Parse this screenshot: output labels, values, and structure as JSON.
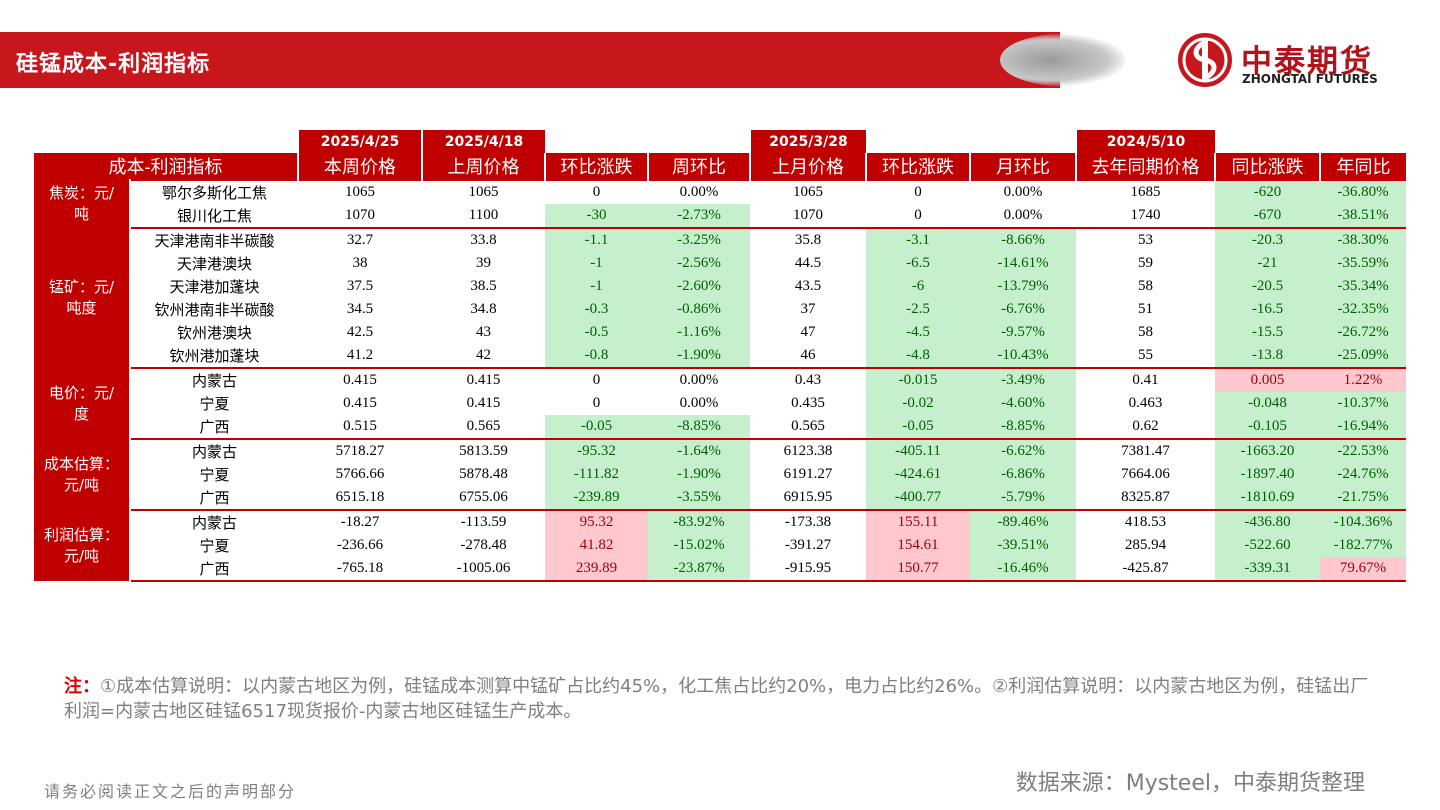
{
  "header": {
    "title": "硅锰成本-利润指标",
    "logo_cn": "中泰期货",
    "logo_en": "ZHONGTAI FUTURES"
  },
  "table": {
    "dates": [
      "2025/4/25",
      "2025/4/18",
      "2025/3/28",
      "2024/5/10"
    ],
    "corner": "成本-利润指标",
    "columns": [
      "本周价格",
      "上周价格",
      "环比涨跌",
      "周环比",
      "上月价格",
      "环比涨跌",
      "月环比",
      "去年同期价格",
      "同比涨跌",
      "年同比"
    ],
    "groups": [
      {
        "label": [
          "焦炭：元/",
          "吨"
        ],
        "rows": [
          {
            "name": "鄂尔多斯化工焦",
            "values": [
              "1065",
              "1065",
              "0",
              "0.00%",
              "1065",
              "0",
              "0.00%",
              "1685",
              "-620",
              "-36.80%"
            ]
          },
          {
            "name": "银川化工焦",
            "values": [
              "1070",
              "1100",
              "-30",
              "-2.73%",
              "1070",
              "0",
              "0.00%",
              "1740",
              "-670",
              "-38.51%"
            ]
          }
        ]
      },
      {
        "label": [
          "锰矿：元/",
          "吨度"
        ],
        "rows": [
          {
            "name": "天津港南非半碳酸",
            "values": [
              "32.7",
              "33.8",
              "-1.1",
              "-3.25%",
              "35.8",
              "-3.1",
              "-8.66%",
              "53",
              "-20.3",
              "-38.30%"
            ]
          },
          {
            "name": "天津港澳块",
            "values": [
              "38",
              "39",
              "-1",
              "-2.56%",
              "44.5",
              "-6.5",
              "-14.61%",
              "59",
              "-21",
              "-35.59%"
            ]
          },
          {
            "name": "天津港加蓬块",
            "values": [
              "37.5",
              "38.5",
              "-1",
              "-2.60%",
              "43.5",
              "-6",
              "-13.79%",
              "58",
              "-20.5",
              "-35.34%"
            ]
          },
          {
            "name": "钦州港南非半碳酸",
            "values": [
              "34.5",
              "34.8",
              "-0.3",
              "-0.86%",
              "37",
              "-2.5",
              "-6.76%",
              "51",
              "-16.5",
              "-32.35%"
            ]
          },
          {
            "name": "钦州港澳块",
            "values": [
              "42.5",
              "43",
              "-0.5",
              "-1.16%",
              "47",
              "-4.5",
              "-9.57%",
              "58",
              "-15.5",
              "-26.72%"
            ]
          },
          {
            "name": "钦州港加蓬块",
            "values": [
              "41.2",
              "42",
              "-0.8",
              "-1.90%",
              "46",
              "-4.8",
              "-10.43%",
              "55",
              "-13.8",
              "-25.09%"
            ]
          }
        ]
      },
      {
        "label": [
          "电价：元/",
          "度"
        ],
        "rows": [
          {
            "name": "内蒙古",
            "values": [
              "0.415",
              "0.415",
              "0",
              "0.00%",
              "0.43",
              "-0.015",
              "-3.49%",
              "0.41",
              "0.005",
              "1.22%"
            ]
          },
          {
            "name": "宁夏",
            "values": [
              "0.415",
              "0.415",
              "0",
              "0.00%",
              "0.435",
              "-0.02",
              "-4.60%",
              "0.463",
              "-0.048",
              "-10.37%"
            ]
          },
          {
            "name": "广西",
            "values": [
              "0.515",
              "0.565",
              "-0.05",
              "-8.85%",
              "0.565",
              "-0.05",
              "-8.85%",
              "0.62",
              "-0.105",
              "-16.94%"
            ]
          }
        ]
      },
      {
        "label": [
          "成本估算：",
          "元/吨"
        ],
        "rows": [
          {
            "name": "内蒙古",
            "values": [
              "5718.27",
              "5813.59",
              "-95.32",
              "-1.64%",
              "6123.38",
              "-405.11",
              "-6.62%",
              "7381.47",
              "-1663.20",
              "-22.53%"
            ]
          },
          {
            "name": "宁夏",
            "values": [
              "5766.66",
              "5878.48",
              "-111.82",
              "-1.90%",
              "6191.27",
              "-424.61",
              "-6.86%",
              "7664.06",
              "-1897.40",
              "-24.76%"
            ]
          },
          {
            "name": "广西",
            "values": [
              "6515.18",
              "6755.06",
              "-239.89",
              "-3.55%",
              "6915.95",
              "-400.77",
              "-5.79%",
              "8325.87",
              "-1810.69",
              "-21.75%"
            ]
          }
        ]
      },
      {
        "label": [
          "利润估算：",
          "元/吨"
        ],
        "rows": [
          {
            "name": "内蒙古",
            "values": [
              "-18.27",
              "-113.59",
              "95.32",
              "-83.92%",
              "-173.38",
              "155.11",
              "-89.46%",
              "418.53",
              "-436.80",
              "-104.36%"
            ]
          },
          {
            "name": "宁夏",
            "values": [
              "-236.66",
              "-278.48",
              "41.82",
              "-15.02%",
              "-391.27",
              "154.61",
              "-39.51%",
              "285.94",
              "-522.60",
              "-182.77%"
            ]
          },
          {
            "name": "广西",
            "values": [
              "-765.18",
              "-1005.06",
              "239.89",
              "-23.87%",
              "-915.95",
              "150.77",
              "-16.46%",
              "-425.87",
              "-339.31",
              "79.67%"
            ]
          }
        ]
      }
    ]
  },
  "note": {
    "prefix": "注：",
    "text": "①成本估算说明：以内蒙古地区为例，硅锰成本测算中锰矿占比约45%，化工焦占比约20%，电力占比约26%。②利润估算说明：以内蒙古地区为例，硅锰出厂利润=内蒙古地区硅锰6517现货报价-内蒙古地区硅锰生产成本。"
  },
  "footer": {
    "disclaimer": "请务必阅读正文之后的声明部分",
    "source": "数据来源：Mysteel，中泰期货整理"
  }
}
